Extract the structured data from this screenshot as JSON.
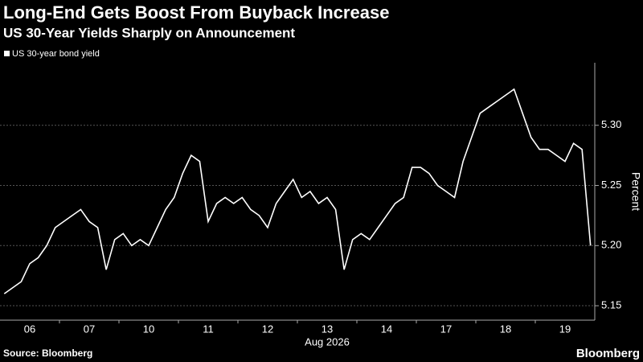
{
  "chart_data": {
    "type": "line",
    "title": "Long-End Gets Boost From Buyback Increase",
    "subtitle": "US 30-Year Yields Sharply on Announcement",
    "categories": [
      "06",
      "07",
      "10",
      "11",
      "12",
      "13",
      "14",
      "17",
      "18",
      "19"
    ],
    "xlabel": "Aug 2026",
    "ylabel": "Percent",
    "series": [
      {
        "name": "US 30-year bond yield",
        "color": "#ffffff",
        "values": [
          [
            5.16,
            5.165,
            5.17,
            5.185,
            5.19,
            5.2,
            5.215
          ],
          [
            5.22,
            5.225,
            5.23,
            5.22,
            5.215,
            5.18,
            5.205
          ],
          [
            5.21,
            5.2,
            5.205,
            5.2,
            5.215,
            5.23,
            5.24
          ],
          [
            5.26,
            5.275,
            5.27,
            5.22,
            5.235,
            5.24,
            5.235
          ],
          [
            5.24,
            5.23,
            5.225,
            5.215,
            5.235,
            5.245,
            5.255
          ],
          [
            5.24,
            5.245,
            5.235,
            5.24,
            5.23,
            5.18,
            5.205
          ],
          [
            5.21,
            5.205,
            5.215,
            5.225,
            5.235,
            5.24,
            5.265
          ],
          [
            5.265,
            5.26,
            5.25,
            5.245,
            5.24,
            5.27,
            5.29
          ],
          [
            5.31,
            5.315,
            5.32,
            5.325,
            5.33,
            5.31,
            5.29
          ],
          [
            5.28,
            5.28,
            5.275,
            5.27,
            5.285,
            5.28,
            5.2
          ]
        ]
      }
    ],
    "ylim": [
      5.138,
      5.352
    ],
    "yticks": [
      5.15,
      {
        "value": 5.2,
        "label": "5.20"
      },
      5.25,
      {
        "value": 5.3,
        "label": "5.30"
      }
    ],
    "y_axis_side": "right",
    "grid": true,
    "source": "Source: Bloomberg",
    "logo": "Bloomberg"
  }
}
